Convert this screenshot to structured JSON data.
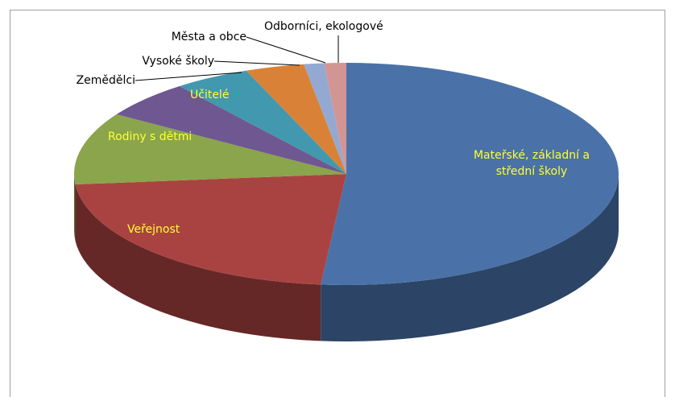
{
  "chart_data": {
    "type": "pie",
    "categories": [
      "Mateřské, základní a střední školy",
      "Veřejnost",
      "Rodiny s dětmi",
      "Učitelé",
      "Zemědělci",
      "Vysoké školy",
      "Města a obce",
      "Odborníci, ekologové"
    ],
    "values": [
      51.5,
      22,
      10.5,
      5.5,
      4.5,
      3.5,
      1.2,
      1.3
    ],
    "colors": [
      "#4a72a8",
      "#a94341",
      "#8aa54b",
      "#6f5792",
      "#4298ae",
      "#d98237",
      "#93a9d2",
      "#d39594"
    ]
  }
}
